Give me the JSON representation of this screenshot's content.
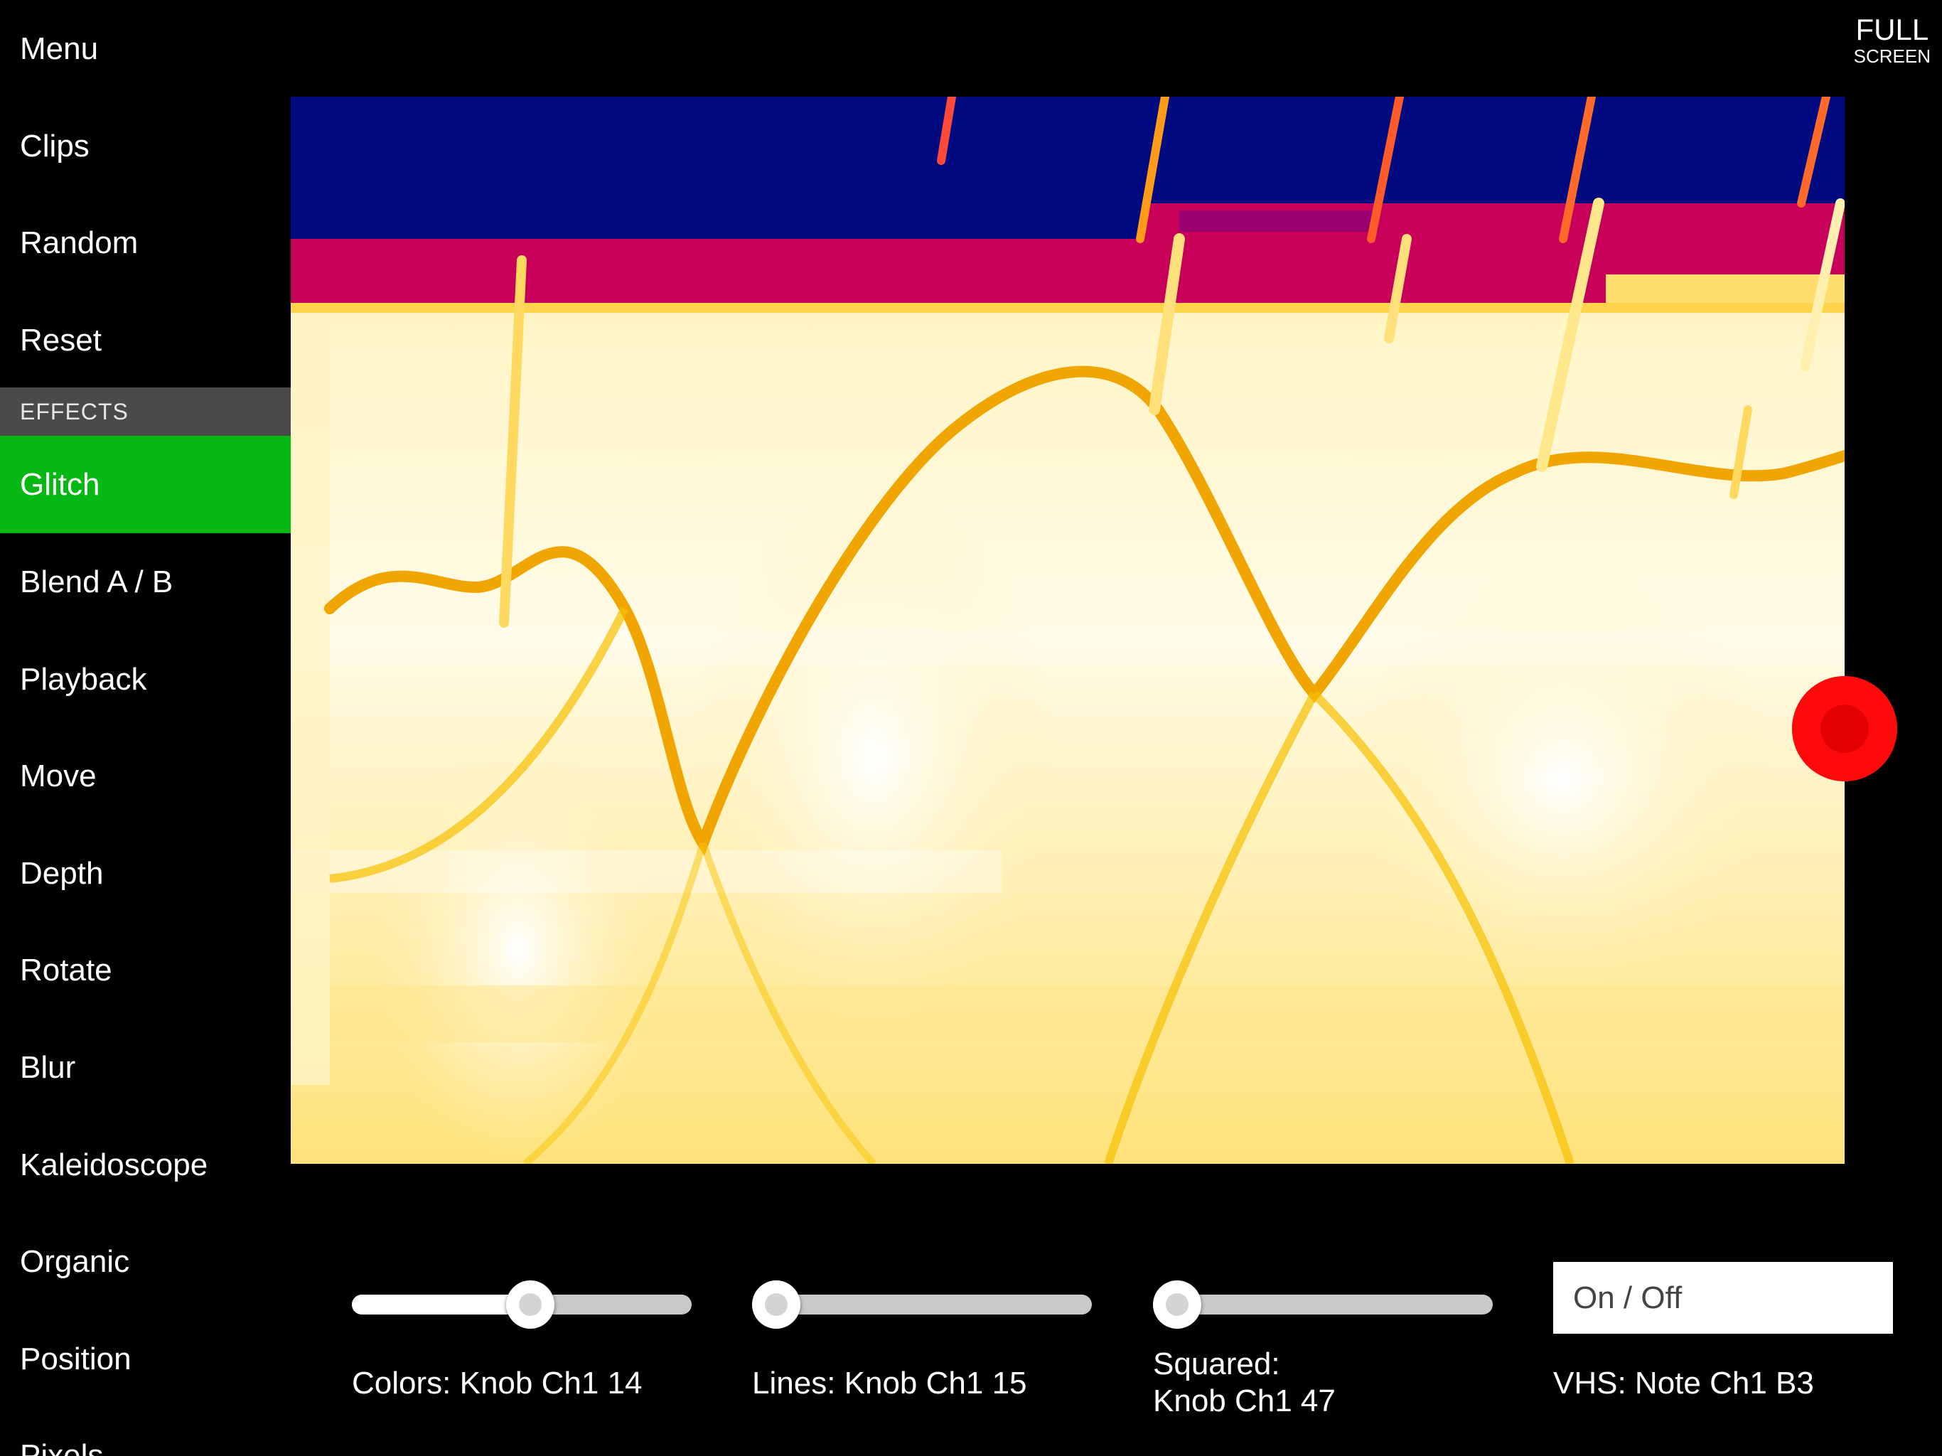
{
  "sidebar": {
    "items": [
      {
        "label": "Menu"
      },
      {
        "label": "Clips"
      },
      {
        "label": "Random"
      },
      {
        "label": "Reset"
      }
    ],
    "section_header": "EFFECTS",
    "effects": [
      {
        "label": "Glitch",
        "active": true
      },
      {
        "label": "Blend A / B"
      },
      {
        "label": "Playback"
      },
      {
        "label": "Move"
      },
      {
        "label": "Depth"
      },
      {
        "label": "Rotate"
      },
      {
        "label": "Blur"
      },
      {
        "label": "Kaleidoscope"
      },
      {
        "label": "Organic"
      },
      {
        "label": "Position"
      },
      {
        "label": "Pixels"
      }
    ],
    "active_color": "#06b814"
  },
  "fullscreen": {
    "line1": "FULL",
    "line2": "SCREEN"
  },
  "controls": {
    "colors": {
      "label": "Colors: Knob Ch1 14",
      "value": 0.53
    },
    "lines": {
      "label": "Lines: Knob Ch1 15",
      "value": 0.0
    },
    "squared": {
      "label_line1": "Squared:",
      "label_line2": "Knob Ch1 47",
      "value": 0.0
    },
    "vhs": {
      "button_label": "On / Off",
      "label": "VHS: Note Ch1 B3"
    }
  },
  "icons": {
    "record": "record-icon"
  },
  "colors": {
    "record": "#ff0a0a",
    "visual_dark": "#000a80",
    "visual_mid": "#c8005a",
    "visual_light": "#fff6cf"
  }
}
